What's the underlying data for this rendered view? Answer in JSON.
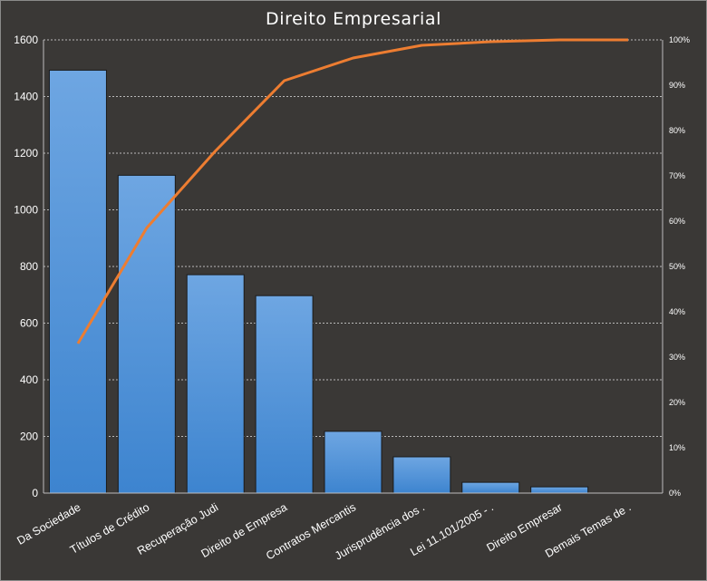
{
  "chart_data": {
    "type": "bar",
    "title": "Direito Empresarial",
    "xlabel": "",
    "ylabel": "",
    "categories": [
      "Da Sociedade",
      "Títulos de Crédito",
      "Recuperação Judi",
      "Direito de Empresa",
      "Contratos Mercantis",
      "Jurisprudência dos .",
      "Lei 11.101/2005 - .",
      "Direito Empresar",
      "Demais Temas de ."
    ],
    "series": [
      {
        "type": "bar",
        "values": [
          1493,
          1122,
          771,
          697,
          218,
          128,
          38,
          22,
          0
        ]
      },
      {
        "type": "line",
        "axis": "secondary",
        "values": [
          33.0,
          58.5,
          75.5,
          91.0,
          96.0,
          98.8,
          99.6,
          100,
          100
        ]
      }
    ],
    "ylim": [
      0,
      1600
    ],
    "yticks": [
      "0",
      "200",
      "400",
      "600",
      "800",
      "1000",
      "1200",
      "1400",
      "1600"
    ],
    "y2lim": [
      0,
      100
    ],
    "y2ticks": [
      "0%",
      "10%",
      "20%",
      "30%",
      "40%",
      "50%",
      "60%",
      "70%",
      "80%",
      "90%",
      "100%"
    ],
    "grid": true,
    "legend": "none",
    "colors": {
      "bar": "#4f93d9",
      "line": "#ed7d31",
      "background": "#3a3836"
    }
  }
}
